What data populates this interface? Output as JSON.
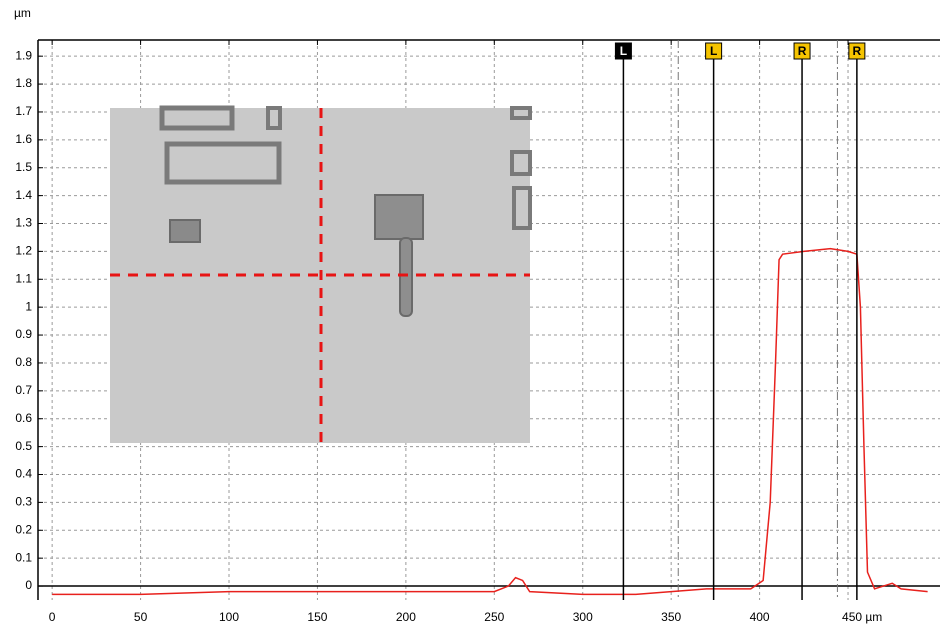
{
  "chart_data": {
    "type": "line",
    "y_unit": "µm",
    "xlim": [
      -8,
      502
    ],
    "ylim": [
      -0.05,
      1.958
    ],
    "xticks": [
      0,
      50,
      100,
      150,
      200,
      250,
      300,
      350,
      400,
      {
        "value": 450,
        "label": "450 µm"
      }
    ],
    "yticks": [
      0,
      0.1,
      0.2,
      0.3,
      0.4,
      0.5,
      0.6,
      0.7,
      0.8,
      0.9,
      1,
      1.1,
      1.2,
      1.3,
      1.4,
      1.5,
      1.6,
      1.7,
      1.8,
      1.9
    ],
    "grid": true,
    "x": [
      0,
      50,
      100,
      150,
      200,
      250,
      258,
      262,
      266,
      270,
      300,
      330,
      370,
      395,
      402,
      406,
      409,
      411,
      413,
      425,
      440,
      450,
      455,
      457,
      459,
      461,
      465,
      470,
      475,
      480,
      495
    ],
    "series": [
      {
        "color": "#e8211d",
        "values": [
          -0.03,
          -0.03,
          -0.02,
          -0.02,
          -0.02,
          -0.02,
          0,
          0.03,
          0.02,
          -0.02,
          -0.03,
          -0.03,
          -0.01,
          -0.01,
          0.02,
          0.3,
          0.8,
          1.17,
          1.19,
          1.2,
          1.21,
          1.2,
          1.19,
          1.0,
          0.5,
          0.05,
          -0.01,
          0,
          0.01,
          -0.01,
          -0.02
        ]
      }
    ],
    "cursors": [
      {
        "label": "L",
        "x": 323,
        "color": "#000000"
      },
      {
        "label": "L",
        "x": 374,
        "color": "#f5c400"
      },
      {
        "label": "R",
        "x": 424,
        "color": "#f5c400"
      },
      {
        "label": "R",
        "x": 455,
        "color": "#f5c400"
      }
    ],
    "guides": [
      354,
      444
    ]
  }
}
